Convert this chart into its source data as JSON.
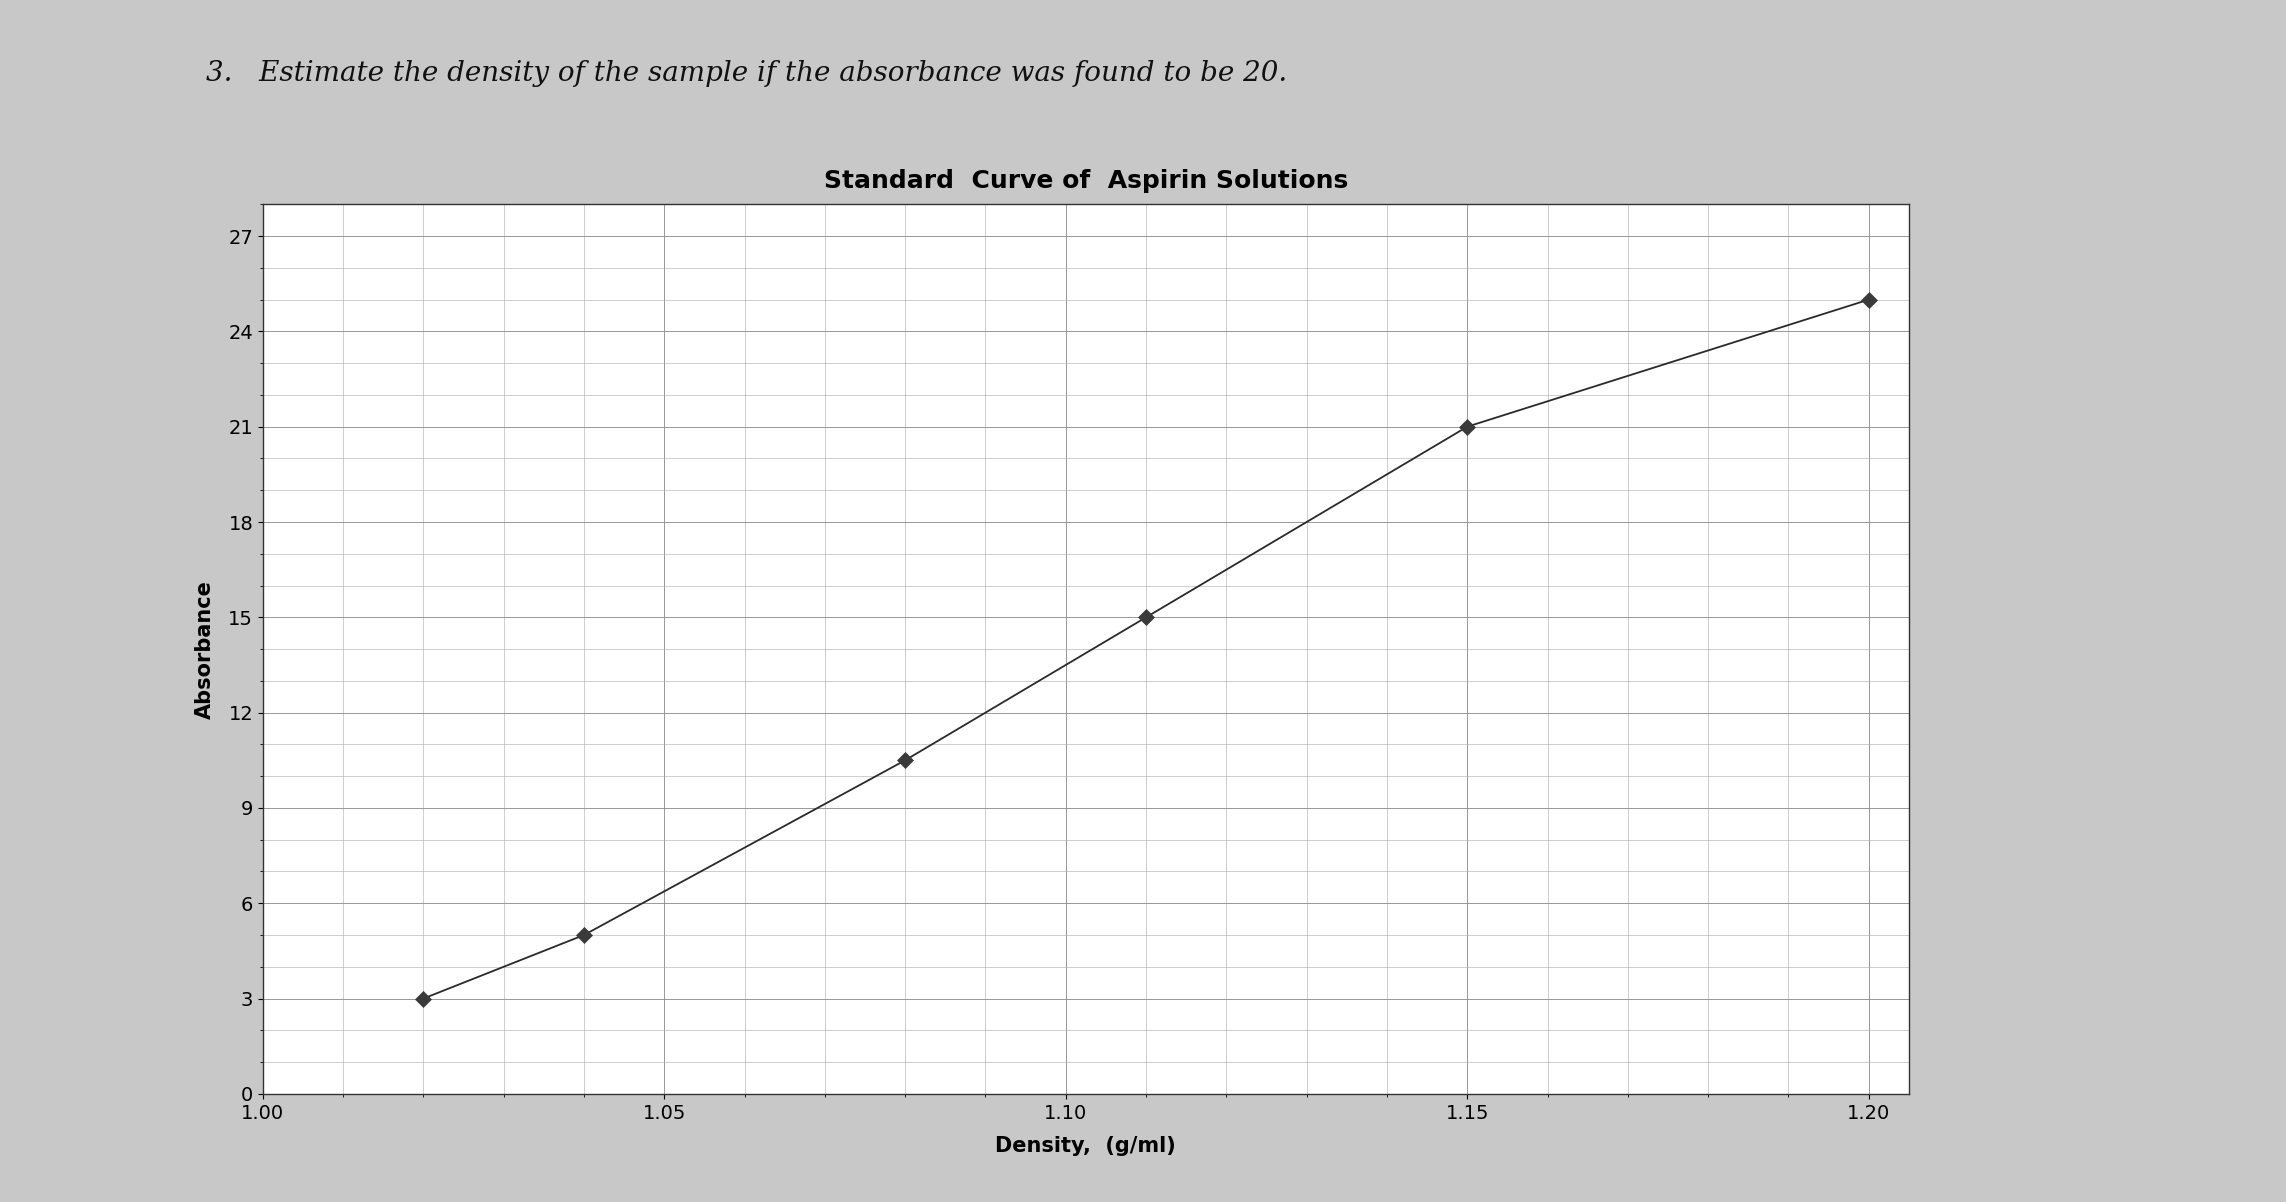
{
  "title": "Standard  Curve of  Aspirin Solutions",
  "xlabel": "Density,  (g/ml)",
  "ylabel": "Absorbance",
  "x_data": [
    1.02,
    1.04,
    1.08,
    1.11,
    1.15,
    1.2
  ],
  "y_data": [
    3,
    5,
    10.5,
    15,
    21,
    25
  ],
  "xlim": [
    1.0,
    1.205
  ],
  "ylim": [
    0,
    28
  ],
  "xticks": [
    1.0,
    1.05,
    1.1,
    1.15,
    1.2
  ],
  "yticks": [
    0,
    3,
    6,
    9,
    12,
    15,
    18,
    21,
    24,
    27
  ],
  "marker_color": "#3a3a3a",
  "line_color": "#2a2a2a",
  "plot_bg": "#e8e8e8",
  "chart_box_bg": "#ffffff",
  "outer_bg": "#c8c8c8",
  "title_fontsize": 18,
  "label_fontsize": 15,
  "tick_fontsize": 14,
  "question_text": "3.   Estimate the density of the sample if the absorbance was found to be 20.",
  "question_fontsize": 20
}
